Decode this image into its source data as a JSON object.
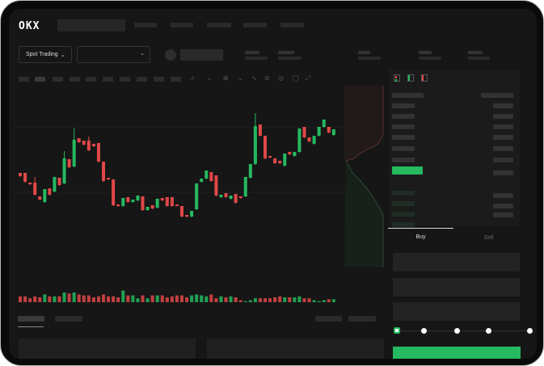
{
  "header": {
    "logo": "OKX"
  },
  "market": {
    "mode_label": "Spot Trading",
    "pair_select_value": ""
  },
  "order_form": {
    "tabs": [
      "Buy",
      "Sell"
    ],
    "active_tab": "Buy",
    "slider_percent": 0,
    "accent": "#25b960"
  },
  "colors": {
    "up": "#25b960",
    "down": "#e04848",
    "background": "#161616"
  },
  "chart_data": {
    "type": "candlestick",
    "candles_ohlc": [
      [
        97,
        93,
        97,
        93
      ],
      [
        97,
        86,
        97,
        86
      ],
      [
        85,
        83,
        85,
        83
      ],
      [
        85,
        70,
        92,
        70
      ],
      [
        68,
        64,
        68,
        64
      ],
      [
        61,
        77,
        77,
        61
      ],
      [
        78,
        70,
        78,
        70
      ],
      [
        74,
        92,
        92,
        74
      ],
      [
        91,
        82,
        91,
        82
      ],
      [
        84,
        115,
        124,
        84
      ],
      [
        114,
        104,
        114,
        104
      ],
      [
        105,
        138,
        152,
        105
      ],
      [
        140,
        135,
        140,
        135
      ],
      [
        137,
        132,
        137,
        132
      ],
      [
        137,
        125,
        142,
        125
      ],
      [
        133,
        130,
        133,
        130
      ],
      [
        134,
        111,
        134,
        111
      ],
      [
        111,
        87,
        111,
        87
      ],
      [
        91,
        89,
        91,
        89
      ],
      [
        89,
        57,
        89,
        57
      ],
      [
        58,
        56,
        58,
        56
      ],
      [
        56,
        66,
        66,
        56
      ],
      [
        67,
        61,
        67,
        61
      ],
      [
        61,
        64,
        64,
        61
      ],
      [
        63,
        69,
        69,
        63
      ],
      [
        68,
        51,
        68,
        51
      ],
      [
        51,
        55,
        55,
        51
      ],
      [
        57,
        53,
        57,
        53
      ],
      [
        54,
        65,
        65,
        54
      ],
      [
        66,
        63,
        66,
        63
      ],
      [
        67,
        56,
        67,
        56
      ],
      [
        67,
        56,
        67,
        56
      ],
      [
        58,
        57,
        58,
        57
      ],
      [
        56,
        43,
        56,
        43
      ],
      [
        45,
        43,
        45,
        43
      ],
      [
        43,
        50,
        50,
        43
      ],
      [
        52,
        84,
        84,
        52
      ],
      [
        86,
        90,
        90,
        86
      ],
      [
        90,
        100,
        100,
        90
      ],
      [
        98,
        87,
        98,
        87
      ],
      [
        94,
        69,
        94,
        69
      ],
      [
        67,
        70,
        70,
        67
      ],
      [
        72,
        67,
        72,
        67
      ],
      [
        65,
        69,
        69,
        65
      ],
      [
        71,
        60,
        71,
        60
      ],
      [
        68,
        66,
        68,
        66
      ],
      [
        68,
        92,
        92,
        68
      ],
      [
        91,
        108,
        108,
        91
      ],
      [
        108,
        155,
        171,
        108
      ],
      [
        157,
        143,
        157,
        143
      ],
      [
        143,
        115,
        143,
        115
      ],
      [
        118,
        116,
        118,
        116
      ],
      [
        115,
        109,
        115,
        109
      ],
      [
        112,
        109,
        112,
        109
      ],
      [
        106,
        121,
        121,
        106
      ],
      [
        123,
        120,
        123,
        120
      ],
      [
        118,
        123,
        123,
        118
      ],
      [
        123,
        152,
        152,
        123
      ],
      [
        154,
        141,
        154,
        141
      ],
      [
        141,
        136,
        141,
        136
      ],
      [
        133,
        143,
        143,
        133
      ],
      [
        143,
        154,
        154,
        143
      ],
      [
        154,
        163,
        163,
        154
      ],
      [
        154,
        147,
        154,
        147
      ],
      [
        144,
        151,
        151,
        144
      ]
    ],
    "volumes": [
      6,
      6,
      4,
      6,
      5,
      8,
      6,
      6,
      6,
      10,
      9,
      10,
      8,
      7,
      7,
      5,
      6,
      8,
      6,
      6,
      5,
      12,
      7,
      7,
      4,
      7,
      4,
      7,
      7,
      7,
      5,
      6,
      7,
      7,
      5,
      7,
      8,
      7,
      6,
      8,
      4,
      6,
      5,
      6,
      5,
      2,
      1,
      2,
      4,
      4,
      4,
      4,
      5,
      6,
      5,
      5,
      5,
      6,
      4,
      4,
      2,
      1,
      2,
      3,
      3
    ]
  }
}
